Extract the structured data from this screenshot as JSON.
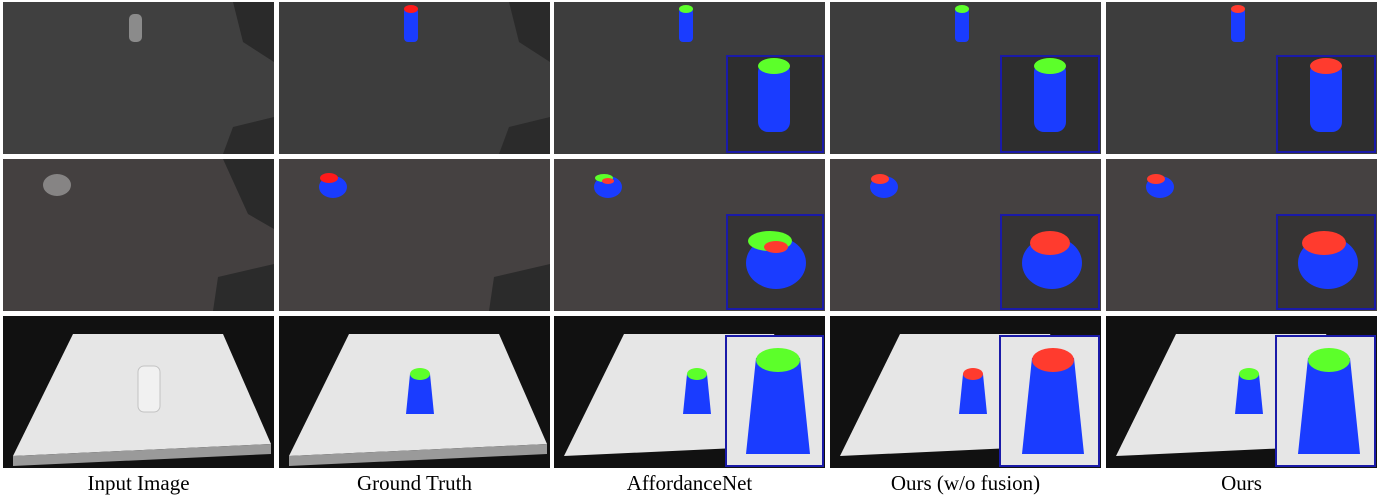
{
  "figure": {
    "columns": [
      {
        "id": "input",
        "caption": "Input Image"
      },
      {
        "id": "gt",
        "caption": "Ground Truth"
      },
      {
        "id": "affnet",
        "caption": "AffordanceNet"
      },
      {
        "id": "ours_nofu",
        "caption": "Ours (w/o fusion)"
      },
      {
        "id": "ours",
        "caption": "Ours"
      }
    ],
    "rows": [
      {
        "id": "tall-glass-dark-table"
      },
      {
        "id": "bowl-glass-dark-table"
      },
      {
        "id": "glass-white-table"
      }
    ],
    "legend_colors": {
      "contain": "#ff3b2e",
      "wrap_grasp": "#1a3cff",
      "alt_top": "#5cff2a",
      "inset_border": "#1a1aa8"
    }
  }
}
